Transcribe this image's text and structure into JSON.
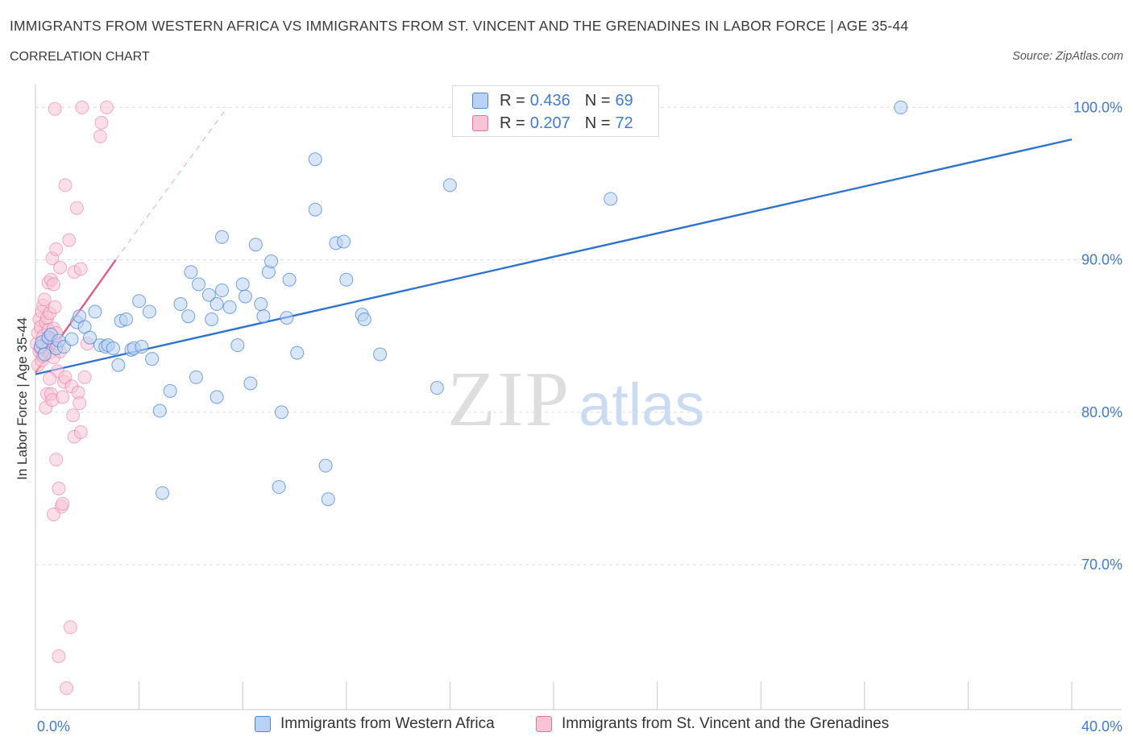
{
  "header": {
    "title": "IMMIGRANTS FROM WESTERN AFRICA VS IMMIGRANTS FROM ST. VINCENT AND THE GRENADINES IN LABOR FORCE | AGE 35-44",
    "subtitle": "CORRELATION CHART",
    "source": "Source: ZipAtlas.com"
  },
  "colors": {
    "blue": "#4a86d8",
    "blue_fill": "#b9d2f3",
    "pink": "#e8709a",
    "pink_fill": "#f7c4d5"
  },
  "legend_top": {
    "rows": [
      {
        "r_label": "R =",
        "r_value": "0.436",
        "n_label": "N =",
        "n_value": "69"
      },
      {
        "r_label": "R =",
        "r_value": "0.207",
        "n_label": "N =",
        "n_value": "72"
      }
    ]
  },
  "chart_data": {
    "type": "scatter",
    "title": "IMMIGRANTS FROM WESTERN AFRICA VS IMMIGRANTS FROM ST. VINCENT AND THE GRENADINES IN LABOR FORCE | AGE 35-44",
    "subtitle": "CORRELATION CHART",
    "xlabel": "",
    "ylabel": "In Labor Force | Age 35-44",
    "xlim": [
      0,
      40
    ],
    "ylim": [
      60.5,
      101.5
    ],
    "x_tick_labels": [
      "0.0%",
      "40.0%"
    ],
    "y_ticks": [
      70,
      80,
      90,
      100
    ],
    "y_tick_labels": [
      "70.0%",
      "80.0%",
      "90.0%",
      "100.0%"
    ],
    "grid": true,
    "legend_position": "top-center",
    "watermark": "ZIPatlas",
    "series": [
      {
        "name": "Immigrants from Western Africa",
        "color": "#4a86d8",
        "trend": {
          "x": [
            0.0,
            40.0
          ],
          "y": [
            82.5,
            97.9
          ]
        },
        "points": [
          [
            0.2,
            84.3
          ],
          [
            0.25,
            84.6
          ],
          [
            0.35,
            83.8
          ],
          [
            0.5,
            84.9
          ],
          [
            0.6,
            85.1
          ],
          [
            0.8,
            84.2
          ],
          [
            0.9,
            84.7
          ],
          [
            1.1,
            84.3
          ],
          [
            1.4,
            84.8
          ],
          [
            1.6,
            85.9
          ],
          [
            1.7,
            86.3
          ],
          [
            1.9,
            85.6
          ],
          [
            2.1,
            84.9
          ],
          [
            2.3,
            86.6
          ],
          [
            2.5,
            84.4
          ],
          [
            2.7,
            84.3
          ],
          [
            2.8,
            84.4
          ],
          [
            3.0,
            84.2
          ],
          [
            3.2,
            83.1
          ],
          [
            3.3,
            86.0
          ],
          [
            3.5,
            86.1
          ],
          [
            3.7,
            84.1
          ],
          [
            3.8,
            84.2
          ],
          [
            4.0,
            87.3
          ],
          [
            4.1,
            84.3
          ],
          [
            4.4,
            86.6
          ],
          [
            4.5,
            83.5
          ],
          [
            4.8,
            80.1
          ],
          [
            5.2,
            81.4
          ],
          [
            5.6,
            87.1
          ],
          [
            5.9,
            86.3
          ],
          [
            6.0,
            89.2
          ],
          [
            6.2,
            82.3
          ],
          [
            6.3,
            88.4
          ],
          [
            6.7,
            87.7
          ],
          [
            6.8,
            86.1
          ],
          [
            7.0,
            87.1
          ],
          [
            7.2,
            88.0
          ],
          [
            7.0,
            81.0
          ],
          [
            7.2,
            91.5
          ],
          [
            7.5,
            86.9
          ],
          [
            7.8,
            84.4
          ],
          [
            8.0,
            88.4
          ],
          [
            8.1,
            87.6
          ],
          [
            8.3,
            81.9
          ],
          [
            8.5,
            91.0
          ],
          [
            8.7,
            87.1
          ],
          [
            8.8,
            86.3
          ],
          [
            9.0,
            89.2
          ],
          [
            9.1,
            89.9
          ],
          [
            9.4,
            75.1
          ],
          [
            9.5,
            80.0
          ],
          [
            9.7,
            86.2
          ],
          [
            9.8,
            88.7
          ],
          [
            10.1,
            83.9
          ],
          [
            10.8,
            96.6
          ],
          [
            10.8,
            93.3
          ],
          [
            11.2,
            76.5
          ],
          [
            11.3,
            74.3
          ],
          [
            11.6,
            91.1
          ],
          [
            11.9,
            91.2
          ],
          [
            12.0,
            88.7
          ],
          [
            12.6,
            86.4
          ],
          [
            12.7,
            86.1
          ],
          [
            13.3,
            83.8
          ],
          [
            15.5,
            81.6
          ],
          [
            16.0,
            94.9
          ],
          [
            22.2,
            94.0
          ],
          [
            33.4,
            100.0
          ],
          [
            4.9,
            74.7
          ]
        ]
      },
      {
        "name": "Immigrants from St. Vincent and the Grenadines",
        "color": "#e8709a",
        "trend": {
          "x": [
            0.0,
            3.1
          ],
          "y": [
            82.6,
            90.0
          ]
        },
        "trend_extended": {
          "x": [
            3.1,
            7.4
          ],
          "y": [
            90.0,
            100.0
          ]
        },
        "points": [
          [
            0.05,
            84.5
          ],
          [
            0.1,
            85.2
          ],
          [
            0.1,
            83.1
          ],
          [
            0.15,
            86.1
          ],
          [
            0.15,
            84.0
          ],
          [
            0.2,
            85.6
          ],
          [
            0.2,
            84.2
          ],
          [
            0.25,
            86.6
          ],
          [
            0.25,
            83.4
          ],
          [
            0.3,
            87.0
          ],
          [
            0.3,
            85.0
          ],
          [
            0.3,
            83.7
          ],
          [
            0.35,
            87.4
          ],
          [
            0.35,
            84.4
          ],
          [
            0.4,
            85.9
          ],
          [
            0.4,
            84.1
          ],
          [
            0.4,
            80.3
          ],
          [
            0.45,
            86.2
          ],
          [
            0.45,
            84.7
          ],
          [
            0.45,
            81.2
          ],
          [
            0.5,
            88.5
          ],
          [
            0.5,
            85.4
          ],
          [
            0.5,
            84.2
          ],
          [
            0.55,
            86.5
          ],
          [
            0.55,
            83.9
          ],
          [
            0.6,
            88.7
          ],
          [
            0.6,
            84.8
          ],
          [
            0.6,
            81.2
          ],
          [
            0.65,
            90.1
          ],
          [
            0.65,
            84.6
          ],
          [
            0.65,
            80.8
          ],
          [
            0.7,
            88.4
          ],
          [
            0.7,
            85.5
          ],
          [
            0.7,
            83.6
          ],
          [
            0.75,
            86.9
          ],
          [
            0.75,
            84.5
          ],
          [
            0.8,
            90.7
          ],
          [
            0.8,
            85.2
          ],
          [
            0.8,
            76.9
          ],
          [
            0.85,
            84.5
          ],
          [
            0.85,
            82.7
          ],
          [
            0.9,
            75.0
          ],
          [
            0.9,
            64.0
          ],
          [
            0.95,
            89.5
          ],
          [
            0.95,
            84.0
          ],
          [
            1.0,
            73.8
          ],
          [
            1.05,
            74.0
          ],
          [
            1.1,
            82.0
          ],
          [
            1.15,
            82.3
          ],
          [
            1.2,
            61.9
          ],
          [
            1.3,
            91.3
          ],
          [
            1.35,
            65.9
          ],
          [
            1.4,
            81.7
          ],
          [
            1.45,
            79.8
          ],
          [
            1.5,
            78.4
          ],
          [
            1.5,
            89.2
          ],
          [
            1.6,
            93.4
          ],
          [
            1.65,
            81.3
          ],
          [
            1.7,
            80.6
          ],
          [
            1.75,
            78.7
          ],
          [
            1.75,
            89.4
          ],
          [
            1.8,
            100.0
          ],
          [
            1.9,
            82.3
          ],
          [
            2.0,
            84.5
          ],
          [
            0.75,
            99.9
          ],
          [
            1.15,
            94.9
          ],
          [
            2.5,
            98.1
          ],
          [
            2.55,
            99.0
          ],
          [
            2.75,
            100.0
          ],
          [
            0.7,
            73.3
          ],
          [
            0.55,
            82.2
          ],
          [
            1.05,
            81.0
          ]
        ]
      }
    ]
  },
  "bottom_legend": {
    "items": [
      "Immigrants from Western Africa",
      "Immigrants from St. Vincent and the Grenadines"
    ]
  }
}
